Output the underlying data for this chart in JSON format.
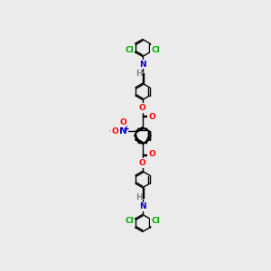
{
  "background_color": "#ebebeb",
  "figsize": [
    3.0,
    3.0
  ],
  "dpi": 100,
  "atom_colors": {
    "C": "#000000",
    "N": "#0000cc",
    "O": "#ff0000",
    "Cl": "#00aa00",
    "H": "#888888"
  },
  "bond_color": "#000000",
  "bond_lw": 1.0,
  "font_size": 6.5
}
